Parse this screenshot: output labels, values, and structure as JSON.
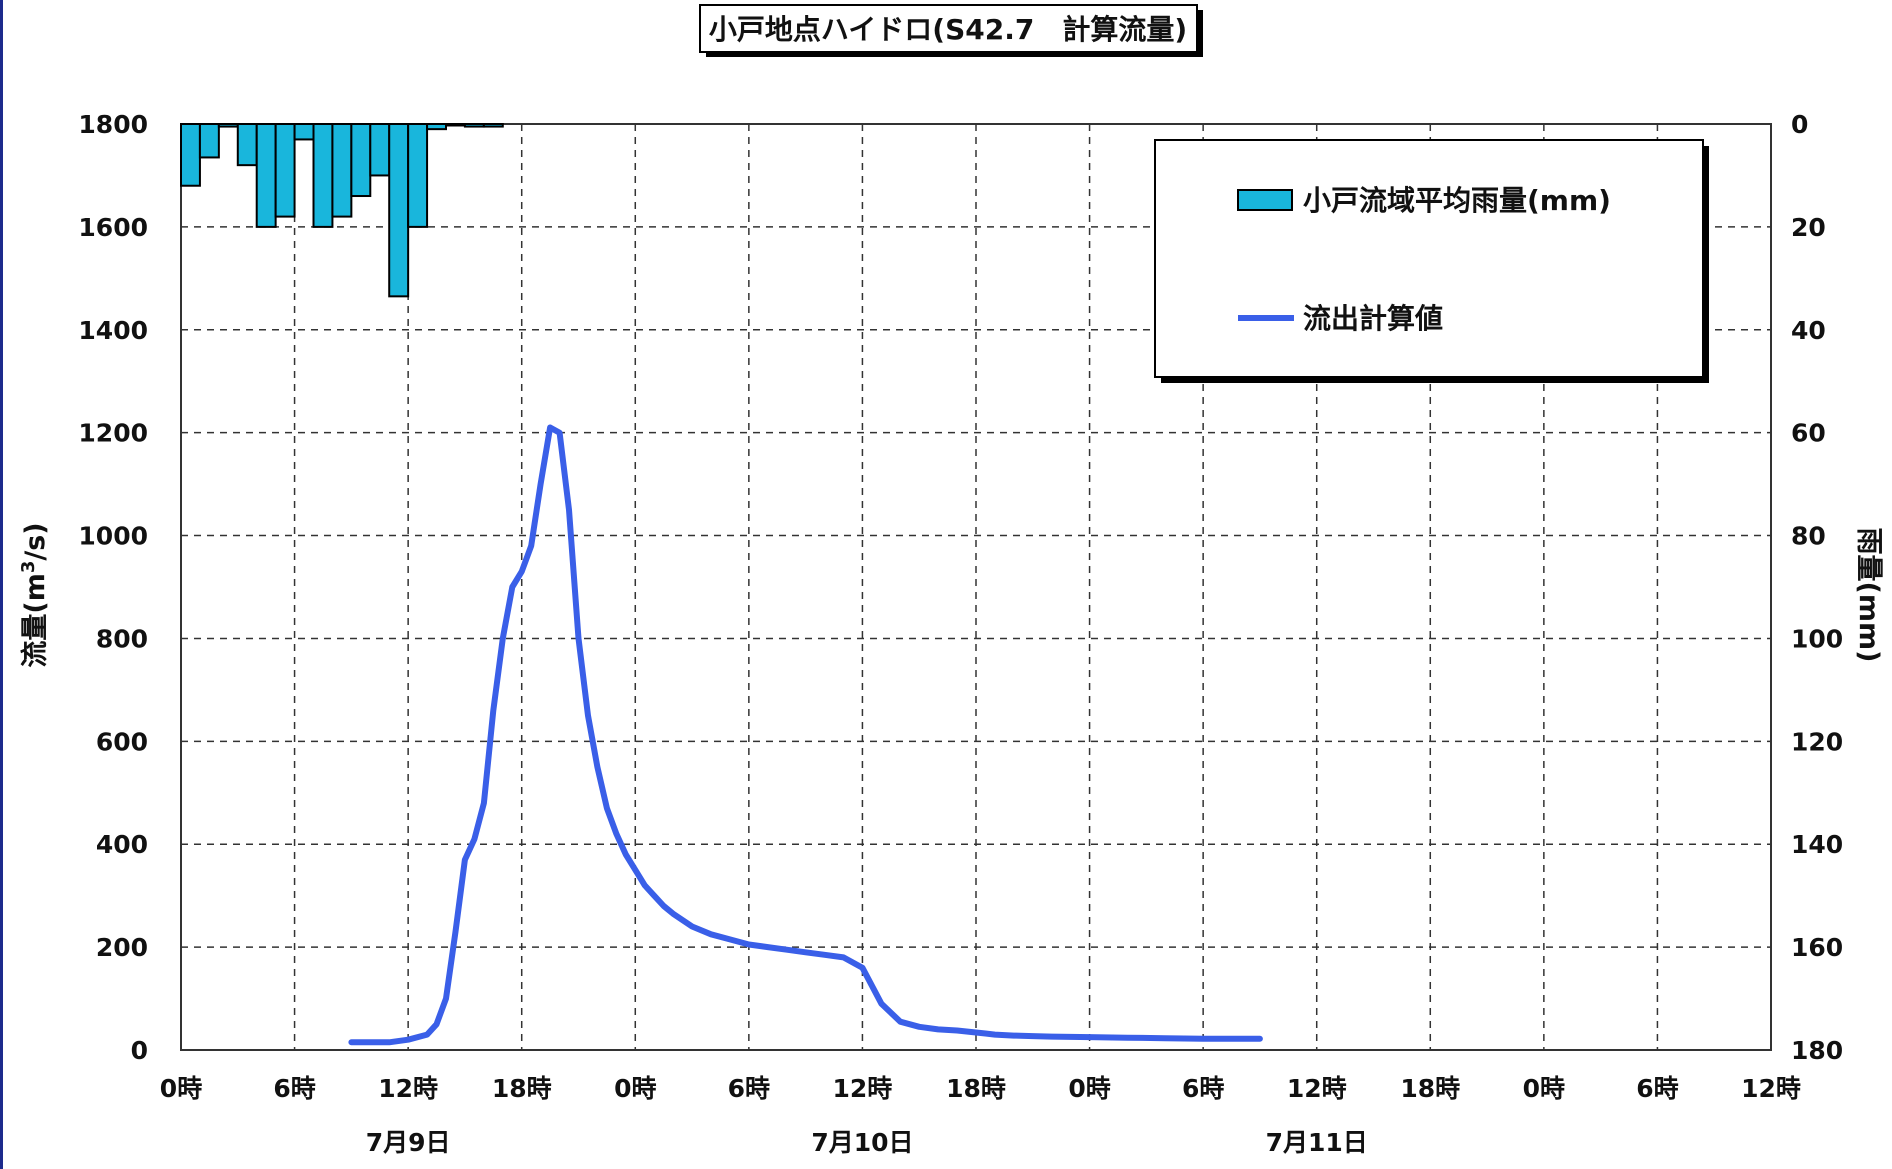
{
  "chart_data": {
    "type": "line",
    "title": "小戸地点ハイドロ(S42.7　計算流量)",
    "ylabel": "流量(m³/s)",
    "ylabel_main": "流量(m",
    "ylabel_sup": "3",
    "ylabel_end": "/s)",
    "y2label": "雨量(mm)",
    "ylim": [
      0,
      1800
    ],
    "y2lim": [
      180,
      0
    ],
    "y_ticks": [
      "0",
      "200",
      "400",
      "600",
      "800",
      "1000",
      "1200",
      "1400",
      "1600",
      "1800"
    ],
    "y2_ticks": [
      "180",
      "160",
      "140",
      "120",
      "100",
      "80",
      "60",
      "40",
      "20",
      "0"
    ],
    "x_ticks": [
      "0時",
      "6時",
      "12時",
      "18時",
      "0時",
      "6時",
      "12時",
      "18時",
      "0時",
      "6時",
      "12時",
      "18時",
      "0時",
      "6時",
      "12時"
    ],
    "date_labels": [
      "7月9日",
      "7月10日",
      "7月11日"
    ],
    "grid": true,
    "legend_position": "top-right",
    "colors": {
      "rain_fill": "#19b6dc",
      "flow_line": "#3a5fe8",
      "rain_edge": "#000000"
    },
    "series": [
      {
        "name": "小戸流域平均雨量(mm)",
        "type": "bar",
        "axis": "right",
        "x_hours": [
          0,
          1,
          2,
          3,
          4,
          5,
          6,
          7,
          8,
          9,
          10,
          11,
          12,
          13,
          14,
          15,
          16
        ],
        "values": [
          12,
          6.5,
          0.5,
          8,
          20,
          18,
          3,
          20,
          18,
          14,
          10,
          33.5,
          20,
          1,
          0,
          0.5,
          0.5
        ]
      },
      {
        "name": "流出計算値",
        "type": "line",
        "axis": "left",
        "x_hours": [
          9,
          10,
          11,
          12,
          13,
          13.5,
          14,
          14.5,
          15,
          15.5,
          16,
          16.5,
          17,
          17.5,
          18,
          18.5,
          19,
          19.5,
          20,
          20.5,
          21,
          21.5,
          22,
          22.5,
          23,
          23.5,
          24,
          24.5,
          25,
          25.5,
          26,
          27,
          28,
          29,
          30,
          31,
          32,
          33,
          34,
          35,
          36,
          37,
          38,
          39,
          40,
          41,
          41.5,
          42,
          42.5,
          43,
          43.5,
          44,
          45,
          46,
          48,
          50,
          52,
          54,
          55,
          56,
          57
        ],
        "values": [
          15,
          15,
          15,
          20,
          30,
          50,
          100,
          230,
          370,
          410,
          480,
          660,
          800,
          900,
          930,
          980,
          1100,
          1210,
          1200,
          1050,
          800,
          650,
          550,
          470,
          420,
          380,
          350,
          320,
          300,
          280,
          265,
          240,
          225,
          215,
          205,
          200,
          195,
          190,
          185,
          180,
          160,
          90,
          55,
          45,
          40,
          38,
          36,
          34,
          32,
          30,
          29,
          28,
          27,
          26,
          25,
          24,
          23,
          22,
          22,
          22,
          22
        ]
      }
    ]
  }
}
